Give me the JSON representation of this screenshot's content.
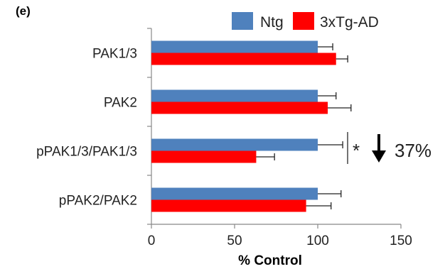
{
  "panel_label": "(e)",
  "chart_data": {
    "type": "bar",
    "orientation": "horizontal",
    "categories": [
      "PAK1/3",
      "PAK2",
      "pPAK1/3/PAK1/3",
      "pPAK2/PAK2"
    ],
    "series": [
      {
        "name": "Ntg",
        "color": "#4f81bd",
        "values": [
          100,
          100,
          100,
          100
        ],
        "error": [
          9,
          11,
          15,
          14
        ]
      },
      {
        "name": "3xTg-AD",
        "color": "#ff0000",
        "values": [
          111,
          106,
          63,
          93
        ],
        "error": [
          7,
          14,
          11,
          15
        ]
      }
    ],
    "xlabel": "% Control",
    "ylabel": "",
    "xlim": [
      0,
      150
    ],
    "xticks": [
      "0",
      "50",
      "100",
      "150"
    ],
    "grid": false,
    "legend": {
      "position": "top",
      "entries": [
        "Ntg",
        "3xTg-AD"
      ]
    },
    "annotation": {
      "category": "pPAK1/3/PAK1/3",
      "star": "*",
      "arrow": "down-arrow-icon",
      "text": "37%"
    }
  }
}
